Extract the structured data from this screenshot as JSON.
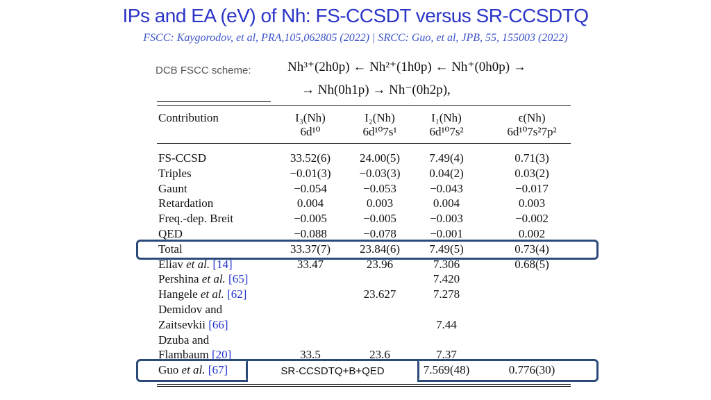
{
  "title": "IPs and EA (eV) of Nh: FS-CCSDT versus SR-CCSDTQ",
  "subtitle": "FSCC: Kaygorodov, et al, PRA,105,062805 (2022) | SRCC: Guo, et al, JPB, 55, 155003 (2022)",
  "scheme": {
    "label": "DCB FSCC scheme:",
    "line1": "Nh³⁺(2h0p) ← Nh²⁺(1h0p) ← Nh⁺(0h0p) →",
    "line2": "→ Nh(0h1p) → Nh⁻(0h2p),"
  },
  "table": {
    "headers": [
      {
        "top": "Contribution",
        "bottom": ""
      },
      {
        "top": "I₃(Nh)",
        "bottom": "6d¹⁰"
      },
      {
        "top": "I₂(Nh)",
        "bottom": "6d¹⁰7s¹"
      },
      {
        "top": "I₁(Nh)",
        "bottom": "6d¹⁰7s²"
      },
      {
        "top": "ϵ(Nh)",
        "bottom": "6d¹⁰7s²7p²"
      }
    ],
    "rows": [
      {
        "label": "FS-CCSD",
        "cite": "",
        "v": [
          "33.52(6)",
          "24.00(5)",
          "7.49(4)",
          "0.71(3)"
        ]
      },
      {
        "label": "Triples",
        "cite": "",
        "v": [
          "−0.01(3)",
          "−0.03(3)",
          "0.04(2)",
          "0.03(2)"
        ]
      },
      {
        "label": "Gaunt",
        "cite": "",
        "v": [
          "−0.054",
          "−0.053",
          "−0.043",
          "−0.017"
        ]
      },
      {
        "label": "Retardation",
        "cite": "",
        "v": [
          "0.004",
          "0.003",
          "0.004",
          "0.003"
        ]
      },
      {
        "label": "Freq.-dep. Breit",
        "cite": "",
        "v": [
          "−0.005",
          "−0.005",
          "−0.003",
          "−0.002"
        ]
      },
      {
        "label": "QED",
        "cite": "",
        "v": [
          "−0.088",
          "−0.078",
          "−0.001",
          "0.002"
        ]
      },
      {
        "label": "Total",
        "cite": "",
        "v": [
          "33.37(7)",
          "23.84(6)",
          "7.49(5)",
          "0.73(4)"
        ]
      },
      {
        "label": "Eliav et al. ",
        "cite": "[14]",
        "v": [
          "33.47",
          "23.96",
          "7.306",
          "0.68(5)"
        ]
      },
      {
        "label": "Pershina et al. ",
        "cite": "[65]",
        "v": [
          "",
          "",
          "7.420",
          ""
        ]
      },
      {
        "label": "Hangele et al. ",
        "cite": "[62]",
        "v": [
          "",
          "23.627",
          "7.278",
          ""
        ]
      },
      {
        "label": "Demidov and",
        "cite": "",
        "v": [
          "",
          "",
          "",
          ""
        ]
      },
      {
        "label": "Zaitsevkii ",
        "cite": "[66]",
        "v": [
          "",
          "",
          "7.44",
          ""
        ]
      },
      {
        "label": "Dzuba and",
        "cite": "",
        "v": [
          "",
          "",
          "",
          ""
        ]
      },
      {
        "label": "Flambaum ",
        "cite": "[20]",
        "v": [
          "33.5",
          "23.6",
          "7.37",
          ""
        ]
      },
      {
        "label": "Guo et al. ",
        "cite": "[67]",
        "v": [
          "",
          "",
          "7.569(48)",
          "0.776(30)"
        ]
      }
    ]
  },
  "guo_method_label": "SR-CCSDTQ+B+QED"
}
